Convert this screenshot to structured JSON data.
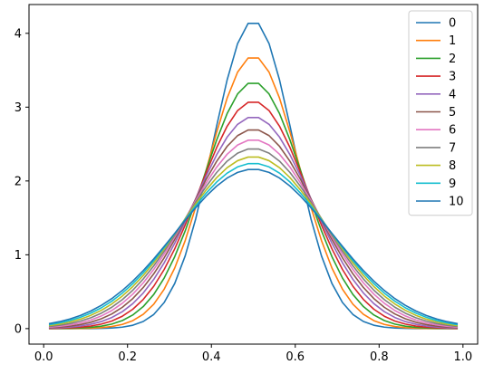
{
  "chart_data": {
    "type": "line",
    "title": "",
    "xlabel": "",
    "ylabel": "",
    "xlim": [
      -0.035,
      1.035
    ],
    "ylim": [
      -0.21,
      4.39
    ],
    "xticks": [
      0.0,
      0.2,
      0.4,
      0.6,
      0.8,
      1.0
    ],
    "xtick_labels": [
      "0.0",
      "0.2",
      "0.4",
      "0.6",
      "0.8",
      "1.0"
    ],
    "yticks": [
      0,
      1,
      2,
      3,
      4
    ],
    "ytick_labels": [
      "0",
      "1",
      "2",
      "3",
      "4"
    ],
    "grid": false,
    "legend_position": "top-right",
    "x_start": 0.0125,
    "x_step": 0.025,
    "n_points": 40,
    "series": [
      {
        "name": "0",
        "color": "#1f77b4",
        "peak": 4.17
      },
      {
        "name": "1",
        "color": "#ff7f0e",
        "peak": 3.69
      },
      {
        "name": "2",
        "color": "#2ca02c",
        "peak": 3.34
      },
      {
        "name": "3",
        "color": "#d62728",
        "peak": 3.08
      },
      {
        "name": "4",
        "color": "#9467bd",
        "peak": 2.87
      },
      {
        "name": "5",
        "color": "#8c564b",
        "peak": 2.7
      },
      {
        "name": "6",
        "color": "#e377c2",
        "peak": 2.56
      },
      {
        "name": "7",
        "color": "#7f7f7f",
        "peak": 2.44
      },
      {
        "name": "8",
        "color": "#bcbd22",
        "peak": 2.33
      },
      {
        "name": "9",
        "color": "#17becf",
        "peak": 2.24
      },
      {
        "name": "10",
        "color": "#1f77b4",
        "peak": 2.16
      }
    ]
  }
}
